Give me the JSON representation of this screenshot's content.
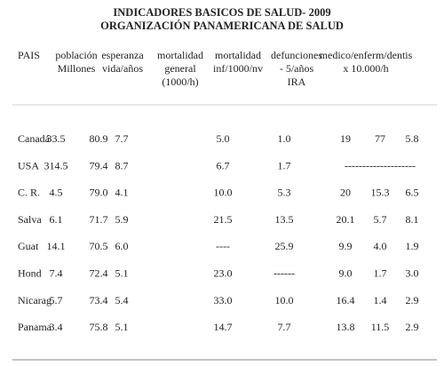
{
  "header": {
    "title": [
      "INDICADORES BASICOS DE SALUD- 2009",
      "ORGANIZACIÓN PANAMERICANA DE SALUD"
    ]
  },
  "table": {
    "columns": [
      [
        "PAIS"
      ],
      [
        "población",
        "Millones"
      ],
      [
        "esperanza",
        "vida/años"
      ],
      [
        "mortalidad",
        "general",
        "(1000/h)"
      ],
      [
        "mortalidad",
        "inf/1000/nv"
      ],
      [
        "defunciones",
        "- 5/años",
        "IRA"
      ],
      [
        "medico/enferm/dentis",
        "x 10.000/h"
      ]
    ],
    "rows": [
      [
        "Canadá",
        "33.5",
        "80.9",
        "7.7",
        "5.0",
        "1.0",
        "19",
        "77",
        "5.8"
      ],
      [
        "USA",
        "314.5",
        "79.4",
        "8.7",
        "6.7",
        "1.7",
        "--------------------"
      ],
      [
        "C. R.",
        "4.5",
        "79.0",
        "4.1",
        "10.0",
        "5.3",
        "20",
        "15.3",
        "6.5"
      ],
      [
        "Salva",
        "6.1",
        "71.7",
        "5.9",
        "21.5",
        "13.5",
        "20.1",
        "5.7",
        "8.1"
      ],
      [
        "Guat",
        "14.1",
        "70.5",
        "6.0",
        "----",
        "25.9",
        "9.9",
        "4.0",
        "1.9"
      ],
      [
        "Hond",
        "7.4",
        "72.4",
        "5.1",
        "23.0",
        "------",
        "9.0",
        "1.7",
        "3.0"
      ],
      [
        "Nicarag",
        "5.7",
        "73.4",
        "5.4",
        "33.0",
        "10.0",
        "16.4",
        "1.4",
        "2.9"
      ],
      [
        "Panama",
        "3.4",
        "75.8",
        "5.1",
        "14.7",
        "7.7",
        "13.8",
        "11.5",
        "2.9"
      ]
    ]
  }
}
